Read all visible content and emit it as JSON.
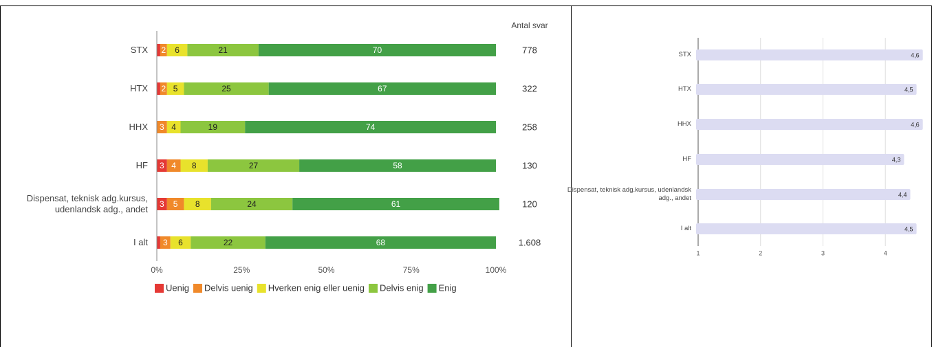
{
  "chart_data": [
    {
      "type": "bar",
      "orientation": "horizontal",
      "stacked": true,
      "categories": [
        "STX",
        "HTX",
        "HHX",
        "HF",
        "Dispensat, teknisk adg.kursus, udenlandsk adg., andet",
        "I alt"
      ],
      "series": [
        {
          "name": "Uenig",
          "color": "#e53935",
          "values": [
            1,
            1,
            0,
            3,
            3,
            1
          ]
        },
        {
          "name": "Delvis uenig",
          "color": "#f0892a",
          "values": [
            2,
            2,
            3,
            4,
            5,
            3
          ]
        },
        {
          "name": "Hverken enig eller uenig",
          "color": "#e8e22c",
          "values": [
            6,
            5,
            4,
            8,
            8,
            6
          ]
        },
        {
          "name": "Delvis enig",
          "color": "#8cc63f",
          "values": [
            21,
            25,
            19,
            27,
            24,
            22
          ]
        },
        {
          "name": "Enig",
          "color": "#43a047",
          "values": [
            70,
            67,
            74,
            58,
            61,
            68
          ]
        }
      ],
      "xlim": [
        0,
        100
      ],
      "xticks": [
        {
          "value": 0,
          "label": "0%"
        },
        {
          "value": 25,
          "label": "25%"
        },
        {
          "value": 50,
          "label": "50%"
        },
        {
          "value": 75,
          "label": "75%"
        },
        {
          "value": 100,
          "label": "100%"
        }
      ],
      "legend": "bottom",
      "counts": {
        "label": "Antal svar",
        "values": [
          778,
          322,
          258,
          130,
          120,
          1608
        ],
        "value_labels": [
          "778",
          "322",
          "258",
          "130",
          "120",
          "1.608"
        ]
      }
    },
    {
      "type": "bar",
      "orientation": "horizontal",
      "categories": [
        "STX",
        "HTX",
        "HHX",
        "HF",
        "Dispensat, teknisk adg.kursus, udenlandsk adg., andet",
        "I alt"
      ],
      "values": [
        4.6,
        4.5,
        4.6,
        4.3,
        4.4,
        4.5
      ],
      "value_labels": [
        "4,6",
        "4,5",
        "4,6",
        "4,3",
        "4,4",
        "4,5"
      ],
      "color": "#dcdcf2",
      "xlim": [
        1,
        4.67
      ],
      "xticks": [
        1,
        2,
        3,
        4
      ],
      "grid": true
    }
  ]
}
